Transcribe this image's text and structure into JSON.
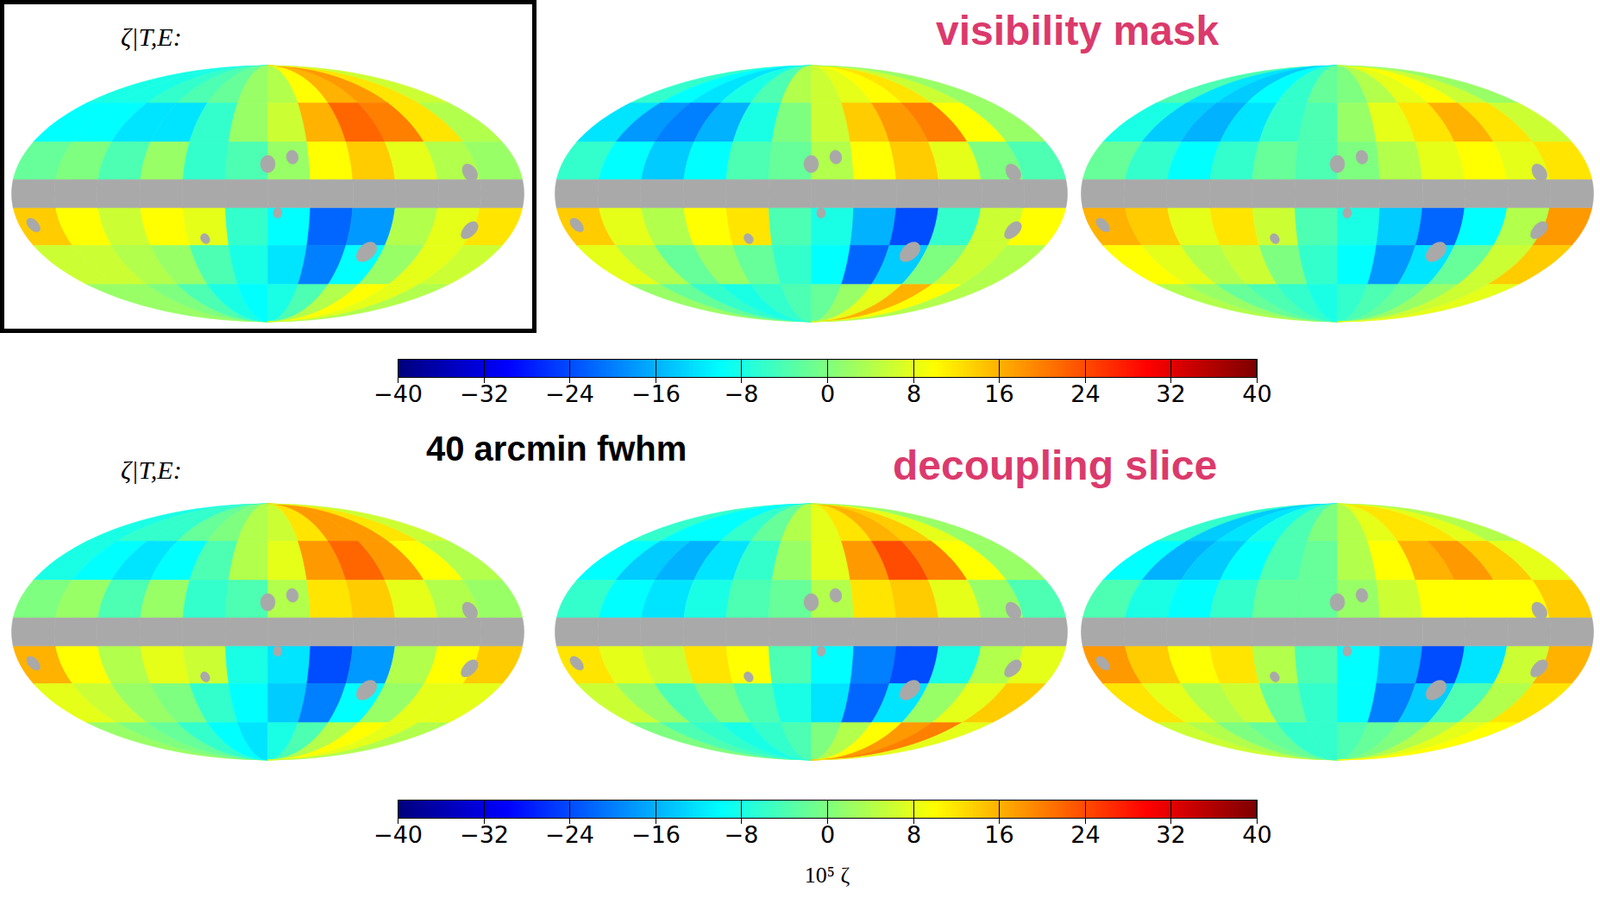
{
  "chart_data": [
    {
      "type": "heatmap",
      "title": "visibility mask",
      "row_label": "ζ|T,E:",
      "lon_edges": [
        -180,
        -150,
        -120,
        -90,
        -60,
        -30,
        0,
        30,
        60,
        90,
        120,
        150,
        180
      ],
      "lat_edges": [
        90,
        55,
        30,
        8,
        -8,
        -30,
        -55,
        -90
      ],
      "maps": [
        [
          [
            -8,
            -8,
            -6,
            -4,
            -2,
            2,
            4,
            10,
            16,
            18,
            12,
            6
          ],
          [
            -10,
            -10,
            -12,
            -12,
            -6,
            2,
            6,
            16,
            22,
            20,
            12,
            4
          ],
          [
            -2,
            0,
            -4,
            2,
            -6,
            -4,
            2,
            10,
            14,
            8,
            4,
            2
          ],
          [
            null,
            null,
            null,
            null,
            null,
            null,
            null,
            null,
            null,
            null,
            null,
            null
          ],
          [
            14,
            10,
            6,
            10,
            8,
            -6,
            -10,
            -22,
            -18,
            4,
            8,
            12
          ],
          [
            6,
            6,
            4,
            2,
            -4,
            -8,
            -12,
            -20,
            -10,
            2,
            8,
            6
          ],
          [
            2,
            2,
            0,
            -4,
            -8,
            -10,
            -8,
            -4,
            4,
            10,
            8,
            4
          ]
        ],
        [
          [
            -6,
            -10,
            -12,
            -8,
            -4,
            4,
            6,
            8,
            10,
            12,
            6,
            2
          ],
          [
            -12,
            -18,
            -20,
            -16,
            -8,
            0,
            6,
            14,
            18,
            20,
            10,
            2
          ],
          [
            -6,
            -10,
            -14,
            -10,
            -4,
            -2,
            4,
            10,
            14,
            8,
            0,
            -4
          ],
          [
            null,
            null,
            null,
            null,
            null,
            null,
            null,
            null,
            null,
            null,
            null,
            null
          ],
          [
            14,
            8,
            4,
            10,
            12,
            -4,
            -8,
            -16,
            -24,
            -6,
            6,
            10
          ],
          [
            8,
            4,
            -2,
            2,
            -2,
            -6,
            -10,
            -22,
            -14,
            0,
            6,
            4
          ],
          [
            2,
            -2,
            -6,
            -8,
            -6,
            -4,
            -2,
            2,
            8,
            16,
            10,
            4
          ]
        ],
        [
          [
            -4,
            -12,
            -14,
            -10,
            -6,
            -2,
            0,
            4,
            8,
            10,
            6,
            2
          ],
          [
            -8,
            -14,
            -16,
            -12,
            -6,
            -4,
            2,
            8,
            12,
            16,
            12,
            6
          ],
          [
            -2,
            -6,
            -10,
            -6,
            -2,
            -4,
            0,
            4,
            8,
            10,
            8,
            12
          ],
          [
            null,
            null,
            null,
            null,
            null,
            null,
            null,
            null,
            null,
            null,
            null,
            null
          ],
          [
            16,
            14,
            8,
            12,
            6,
            -4,
            -8,
            -14,
            -22,
            -10,
            4,
            18
          ],
          [
            10,
            8,
            4,
            6,
            0,
            -6,
            -10,
            -18,
            -12,
            -2,
            6,
            14
          ],
          [
            4,
            2,
            -2,
            -4,
            -6,
            -8,
            -6,
            -4,
            -2,
            2,
            6,
            8
          ]
        ]
      ],
      "mask_holes": [
        {
          "lon": 0,
          "lat": 17,
          "radius": 5
        },
        {
          "lon": 18,
          "lat": 21,
          "radius": 4
        },
        {
          "lon": 78,
          "lat": -34,
          "radius": 6
        },
        {
          "lon": 144,
          "lat": 12,
          "radius": 5
        },
        {
          "lon": 148,
          "lat": -21,
          "radius": 5
        },
        {
          "lon": 7,
          "lat": -11,
          "radius": 3
        },
        {
          "lon": -47,
          "lat": -26,
          "radius": 3
        },
        {
          "lon": -170,
          "lat": -18,
          "radius": 4
        }
      ],
      "colorbar": {
        "lim": [
          -40,
          40
        ],
        "ticks": [
          -40,
          -32,
          -24,
          -16,
          -8,
          0,
          8,
          16,
          24,
          32,
          40
        ]
      }
    },
    {
      "type": "heatmap",
      "title": "decoupling slice",
      "row_label": "ζ|T,E:",
      "annotation": "40 arcmin fwhm",
      "lon_edges": [
        -180,
        -150,
        -120,
        -90,
        -60,
        -30,
        0,
        30,
        60,
        90,
        120,
        150,
        180
      ],
      "lat_edges": [
        90,
        55,
        30,
        8,
        -8,
        -30,
        -55,
        -90
      ],
      "maps": [
        [
          [
            -8,
            -6,
            -6,
            -2,
            0,
            4,
            6,
            12,
            18,
            18,
            12,
            6
          ],
          [
            -8,
            -10,
            -12,
            -10,
            -4,
            4,
            8,
            18,
            22,
            18,
            10,
            4
          ],
          [
            0,
            2,
            -4,
            2,
            -6,
            -4,
            4,
            12,
            14,
            8,
            4,
            2
          ],
          [
            null,
            null,
            null,
            null,
            null,
            null,
            null,
            null,
            null,
            null,
            null,
            null
          ],
          [
            16,
            10,
            4,
            8,
            6,
            -8,
            -12,
            -24,
            -18,
            4,
            10,
            14
          ],
          [
            8,
            6,
            2,
            0,
            -6,
            -10,
            -14,
            -20,
            -10,
            2,
            8,
            8
          ],
          [
            2,
            0,
            -2,
            -6,
            -10,
            -12,
            -8,
            -4,
            4,
            10,
            8,
            4
          ]
        ],
        [
          [
            -6,
            -10,
            -10,
            -6,
            -2,
            4,
            8,
            12,
            16,
            14,
            8,
            2
          ],
          [
            -10,
            -14,
            -16,
            -12,
            -6,
            2,
            8,
            18,
            24,
            20,
            10,
            2
          ],
          [
            -6,
            -10,
            -12,
            -8,
            -4,
            -2,
            4,
            12,
            14,
            8,
            2,
            -4
          ],
          [
            null,
            null,
            null,
            null,
            null,
            null,
            null,
            null,
            null,
            null,
            null,
            null
          ],
          [
            12,
            8,
            6,
            12,
            10,
            -4,
            -10,
            -20,
            -24,
            -8,
            4,
            8
          ],
          [
            6,
            2,
            -4,
            0,
            -4,
            -8,
            -12,
            -22,
            -12,
            2,
            8,
            14
          ],
          [
            0,
            -4,
            -6,
            -8,
            -6,
            -4,
            0,
            4,
            10,
            18,
            20,
            8
          ]
        ],
        [
          [
            -6,
            -14,
            -12,
            -8,
            -4,
            0,
            4,
            8,
            12,
            12,
            8,
            4
          ],
          [
            -10,
            -16,
            -14,
            -10,
            -4,
            -2,
            4,
            10,
            16,
            18,
            14,
            8
          ],
          [
            -4,
            -8,
            -10,
            -6,
            -2,
            -2,
            2,
            6,
            10,
            10,
            10,
            14
          ],
          [
            null,
            null,
            null,
            null,
            null,
            null,
            null,
            null,
            null,
            null,
            null,
            null
          ],
          [
            18,
            14,
            10,
            12,
            4,
            -4,
            -10,
            -16,
            -24,
            -12,
            6,
            16
          ],
          [
            12,
            8,
            4,
            6,
            -2,
            -6,
            -10,
            -20,
            -14,
            -4,
            4,
            12
          ],
          [
            6,
            4,
            0,
            -2,
            -6,
            -6,
            -4,
            -2,
            0,
            4,
            8,
            10
          ]
        ]
      ],
      "mask_holes": [
        {
          "lon": 0,
          "lat": 17,
          "radius": 5
        },
        {
          "lon": 18,
          "lat": 21,
          "radius": 4
        },
        {
          "lon": 78,
          "lat": -34,
          "radius": 6
        },
        {
          "lon": 144,
          "lat": 12,
          "radius": 5
        },
        {
          "lon": 148,
          "lat": -21,
          "radius": 5
        },
        {
          "lon": 7,
          "lat": -11,
          "radius": 3
        },
        {
          "lon": -47,
          "lat": -26,
          "radius": 3
        },
        {
          "lon": -170,
          "lat": -18,
          "radius": 4
        }
      ],
      "colorbar": {
        "lim": [
          -40,
          40
        ],
        "ticks": [
          -40,
          -32,
          -24,
          -16,
          -8,
          0,
          8,
          16,
          24,
          32,
          40
        ],
        "label": "10⁵ ζ"
      }
    }
  ]
}
